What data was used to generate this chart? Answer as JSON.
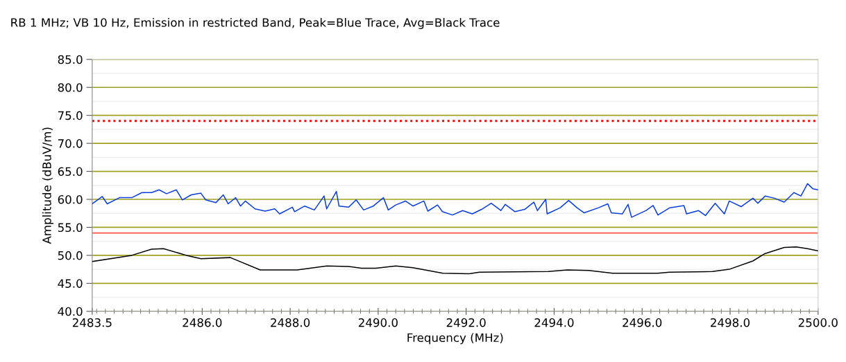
{
  "chart_data": {
    "type": "line",
    "title": "RB 1 MHz; VB 10 Hz, Emission in restricted Band, Peak=Blue Trace, Avg=Black Trace",
    "xlabel": "Frequency (MHz)",
    "ylabel": "Amplitude (dBuV/m)",
    "xlim": [
      2483.5,
      2500.0
    ],
    "xticks": [
      {
        "value": 2483.5,
        "label": "2483.5"
      },
      {
        "value": 2486,
        "label": "2486.0"
      },
      {
        "value": 2488,
        "label": "2488.0"
      },
      {
        "value": 2490,
        "label": "2490.0"
      },
      {
        "value": 2492,
        "label": "2492.0"
      },
      {
        "value": 2494,
        "label": "2494.0"
      },
      {
        "value": 2496,
        "label": "2496.0"
      },
      {
        "value": 2498,
        "label": "2498.0"
      },
      {
        "value": 2500,
        "label": "2500.0"
      }
    ],
    "ylim": [
      40,
      85
    ],
    "yticks": [
      {
        "value": 40,
        "label": "40.0"
      },
      {
        "value": 45,
        "label": "45.0"
      },
      {
        "value": 50,
        "label": "50.0"
      },
      {
        "value": 55,
        "label": "55.0"
      },
      {
        "value": 60,
        "label": "60.0"
      },
      {
        "value": 65,
        "label": "65.0"
      },
      {
        "value": 70,
        "label": "70.0"
      },
      {
        "value": 75,
        "label": "75.0"
      },
      {
        "value": 80,
        "label": "80.0"
      },
      {
        "value": 85,
        "label": "85.0"
      }
    ],
    "grid": "y",
    "marker": "none",
    "line_style": "solid",
    "ref_lines": [
      {
        "axis": "y",
        "value": 74,
        "color": "#ff0000",
        "line_style": "dotted"
      },
      {
        "axis": "y",
        "value": 54,
        "color": "#ff5040",
        "line_style": "solid"
      }
    ],
    "series": [
      {
        "color": "#0a3de0",
        "x": [
          2483.5,
          2483.73,
          2483.84,
          2484.12,
          2484.4,
          2484.63,
          2484.85,
          2485.02,
          2485.19,
          2485.41,
          2485.55,
          2485.75,
          2485.97,
          2486.08,
          2486.31,
          2486.48,
          2486.59,
          2486.76,
          2486.87,
          2486.98,
          2487.2,
          2487.43,
          2487.65,
          2487.76,
          2488.05,
          2488.1,
          2488.33,
          2488.55,
          2488.77,
          2488.83,
          2489.05,
          2489.11,
          2489.33,
          2489.5,
          2489.67,
          2489.89,
          2490.12,
          2490.23,
          2490.4,
          2490.62,
          2490.79,
          2491.04,
          2491.13,
          2491.35,
          2491.46,
          2491.69,
          2491.92,
          2492.14,
          2492.35,
          2492.57,
          2492.79,
          2492.89,
          2493.11,
          2493.33,
          2493.54,
          2493.62,
          2493.81,
          2493.84,
          2494.14,
          2494.33,
          2494.52,
          2494.68,
          2495.01,
          2495.22,
          2495.3,
          2495.55,
          2495.68,
          2495.76,
          2496.09,
          2496.25,
          2496.36,
          2496.63,
          2496.95,
          2497.01,
          2497.28,
          2497.44,
          2497.66,
          2497.87,
          2497.98,
          2498.25,
          2498.52,
          2498.63,
          2498.8,
          2499.01,
          2499.23,
          2499.45,
          2499.61,
          2499.76,
          2499.88,
          2500.0
        ],
        "values": [
          59.2,
          60.5,
          59.2,
          60.3,
          60.3,
          61.2,
          61.2,
          61.7,
          61.0,
          61.7,
          59.9,
          60.8,
          61.1,
          59.9,
          59.4,
          60.8,
          59.2,
          60.3,
          58.8,
          59.7,
          58.3,
          57.9,
          58.3,
          57.4,
          58.6,
          57.8,
          58.8,
          58.1,
          60.6,
          58.3,
          61.4,
          58.8,
          58.6,
          59.9,
          58.1,
          58.8,
          60.3,
          58.1,
          59.0,
          59.7,
          58.8,
          59.7,
          57.9,
          59.0,
          57.8,
          57.2,
          58.0,
          57.4,
          58.2,
          59.3,
          58.0,
          59.1,
          57.8,
          58.2,
          59.5,
          58.0,
          60.0,
          57.4,
          58.5,
          59.8,
          58.5,
          57.6,
          58.5,
          59.2,
          57.6,
          57.4,
          59.1,
          56.8,
          58.0,
          58.9,
          57.2,
          58.5,
          58.9,
          57.4,
          58.0,
          57.1,
          59.3,
          57.4,
          59.7,
          58.7,
          60.2,
          59.3,
          60.6,
          60.2,
          59.5,
          61.2,
          60.6,
          62.8,
          61.9,
          61.7
        ]
      },
      {
        "color": "#000000",
        "x": [
          2483.5,
          2484.4,
          2484.85,
          2485.12,
          2485.64,
          2485.97,
          2486.64,
          2487.32,
          2488.16,
          2488.83,
          2489.33,
          2489.62,
          2489.95,
          2490.4,
          2490.79,
          2491.47,
          2492.07,
          2492.3,
          2493.87,
          2494.3,
          2494.79,
          2495.33,
          2496.36,
          2496.62,
          2497.6,
          2497.98,
          2498.52,
          2498.79,
          2499.23,
          2499.5,
          2499.76,
          2500.0
        ],
        "values": [
          48.9,
          50.0,
          51.1,
          51.2,
          50.0,
          49.4,
          49.6,
          47.4,
          47.4,
          48.1,
          48.0,
          47.7,
          47.7,
          48.1,
          47.8,
          46.8,
          46.7,
          47.0,
          47.1,
          47.4,
          47.3,
          46.8,
          46.8,
          47.0,
          47.1,
          47.5,
          49.0,
          50.3,
          51.4,
          51.5,
          51.2,
          50.8
        ]
      }
    ]
  }
}
